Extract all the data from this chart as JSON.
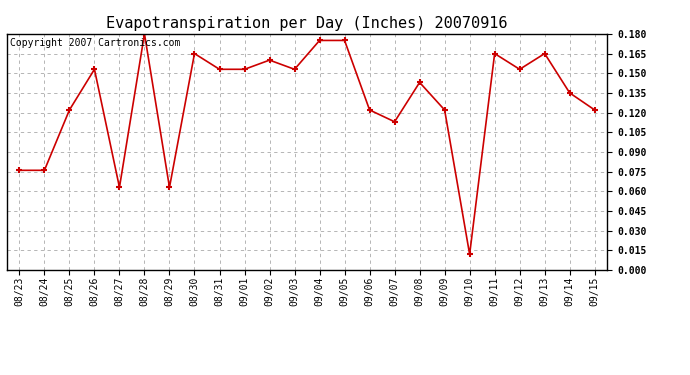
{
  "title": "Evapotranspiration per Day (Inches) 20070916",
  "copyright_text": "Copyright 2007 Cartronics.com",
  "x_labels": [
    "08/23",
    "08/24",
    "08/25",
    "08/26",
    "08/27",
    "08/28",
    "08/29",
    "08/30",
    "08/31",
    "09/01",
    "09/02",
    "09/03",
    "09/04",
    "09/05",
    "09/06",
    "09/07",
    "09/08",
    "09/09",
    "09/10",
    "09/11",
    "09/12",
    "09/13",
    "09/14",
    "09/15"
  ],
  "y_values": [
    0.076,
    0.076,
    0.122,
    0.153,
    0.063,
    0.18,
    0.063,
    0.165,
    0.153,
    0.153,
    0.16,
    0.153,
    0.175,
    0.175,
    0.122,
    0.113,
    0.143,
    0.122,
    0.012,
    0.165,
    0.153,
    0.165,
    0.135,
    0.122
  ],
  "line_color": "#cc0000",
  "marker": "+",
  "marker_size": 5,
  "marker_color": "#cc0000",
  "ylim_min": 0.0,
  "ylim_max": 0.18,
  "ytick_step": 0.015,
  "background_color": "#ffffff",
  "plot_bg_color": "#ffffff",
  "grid_color": "#aaaaaa",
  "grid_style": "--",
  "title_fontsize": 11,
  "tick_fontsize": 7,
  "copyright_fontsize": 7
}
